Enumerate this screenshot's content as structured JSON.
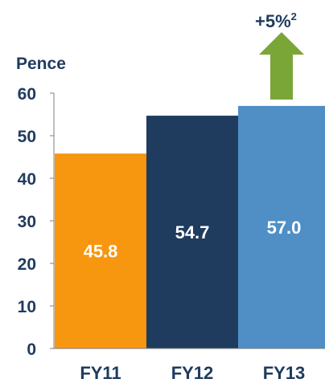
{
  "chart_data": {
    "type": "bar",
    "ylabel": "Pence",
    "categories": [
      "FY11",
      "FY12",
      "FY13"
    ],
    "values": [
      45.8,
      54.7,
      57.0
    ],
    "value_labels": [
      "45.8",
      "54.7",
      "57.0"
    ],
    "ylim": [
      0,
      60
    ],
    "yticks": [
      "0",
      "10",
      "20",
      "30",
      "40",
      "50",
      "60"
    ],
    "grid": false,
    "legend": "none",
    "colors": [
      "#f7960f",
      "#1f3b5e",
      "#4f8fc6"
    ],
    "label_color": "#ffffff",
    "axis_text_color": "#1f3b5e",
    "annotation": {
      "text": "+5%",
      "superscript": "2",
      "arrow_color": "#7aa637",
      "target_category": "FY13"
    }
  }
}
